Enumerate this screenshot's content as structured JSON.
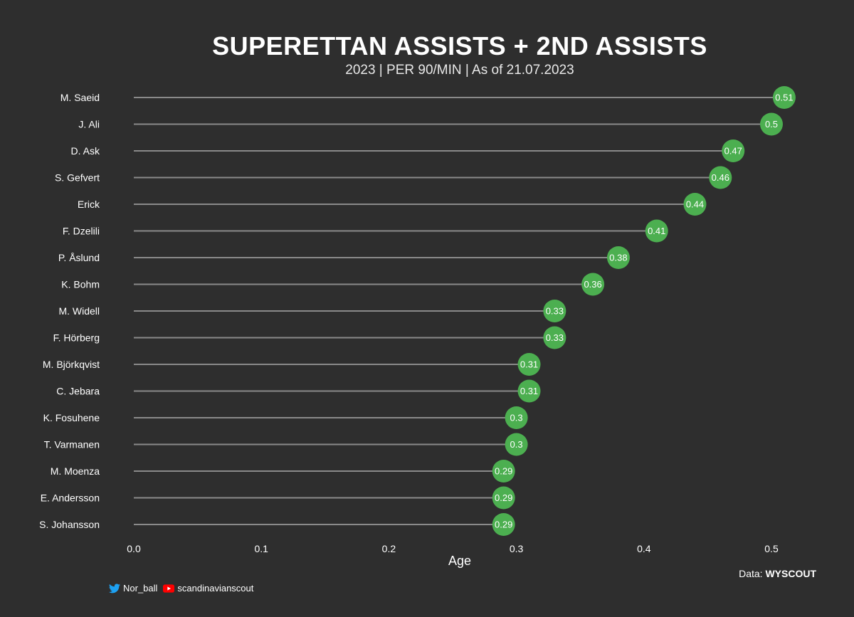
{
  "title": "SUPERETTAN ASSISTS + 2ND ASSISTS",
  "subtitle": "2023 | PER 90/MIN | As of 21.07.2023",
  "credit": {
    "prefix": "Data:",
    "source": "WYSCOUT"
  },
  "social": {
    "twitter": "Nor_ball",
    "youtube": "scandinavianscout"
  },
  "colors": {
    "background": "#2e2e2e",
    "marker": "#4caf50",
    "stem": "#8a8a8a",
    "text": "#ffffff"
  },
  "chart_data": {
    "type": "lollipop",
    "title": "SUPERETTAN ASSISTS + 2ND ASSISTS",
    "xlabel": "Age",
    "ylabel": "",
    "xlim": [
      0,
      0.5
    ],
    "xticks": [
      "0.0",
      "0.1",
      "0.2",
      "0.3",
      "0.4",
      "0.5"
    ],
    "categories": [
      "M. Saeid",
      "J. Ali",
      "D. Ask",
      "S. Gefvert",
      "Erick",
      "F. Dzelili",
      "P. Åslund",
      "K. Bohm",
      "M. Widell",
      "F. Hörberg",
      "M. Björkqvist",
      "C. Jebara",
      "K. Fosuhene",
      "T. Varmanen",
      "M. Moenza",
      "E. Andersson",
      "S. Johansson"
    ],
    "values": [
      0.51,
      0.5,
      0.47,
      0.46,
      0.44,
      0.41,
      0.38,
      0.36,
      0.33,
      0.33,
      0.31,
      0.31,
      0.3,
      0.3,
      0.29,
      0.29,
      0.29
    ],
    "labels": [
      "0.51",
      "0.5",
      "0.47",
      "0.46",
      "0.44",
      "0.41",
      "0.38",
      "0.36",
      "0.33",
      "0.33",
      "0.31",
      "0.31",
      "0.3",
      "0.3",
      "0.29",
      "0.29",
      "0.29"
    ],
    "grid": false
  }
}
